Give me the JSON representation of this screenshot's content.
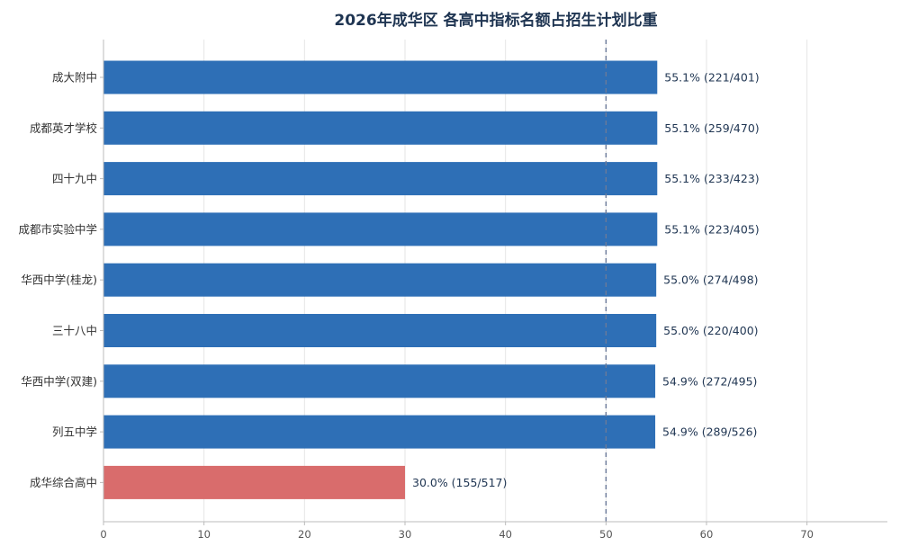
{
  "chart_data": {
    "type": "bar",
    "orientation": "horizontal",
    "title": "2026年成华区 各高中指标名额占招生计划比重",
    "xlabel": "",
    "ylabel": "",
    "xlim": [
      0,
      78
    ],
    "xticks": [
      0,
      10,
      20,
      30,
      40,
      50,
      60,
      70
    ],
    "reference_line": 50,
    "grid": true,
    "categories": [
      "成大附中",
      "成都英才学校",
      "四十九中",
      "成都市实验中学",
      "华西中学(桂龙)",
      "三十八中",
      "华西中学(双建)",
      "列五中学",
      "成华综合高中"
    ],
    "values": [
      55.1,
      55.1,
      55.1,
      55.1,
      55.0,
      55.0,
      54.9,
      54.9,
      30.0
    ],
    "labels": [
      "55.1%  (221/401)",
      "55.1%  (259/470)",
      "55.1%  (233/423)",
      "55.1%  (223/405)",
      "55.0%  (274/498)",
      "55.0%  (220/400)",
      "54.9%  (272/495)",
      "54.9%  (289/526)",
      "30.0%  (155/517)"
    ],
    "colors": {
      "default": "#2e6fb6",
      "highlight": "#d96c6c",
      "highlight_index": 8
    }
  }
}
